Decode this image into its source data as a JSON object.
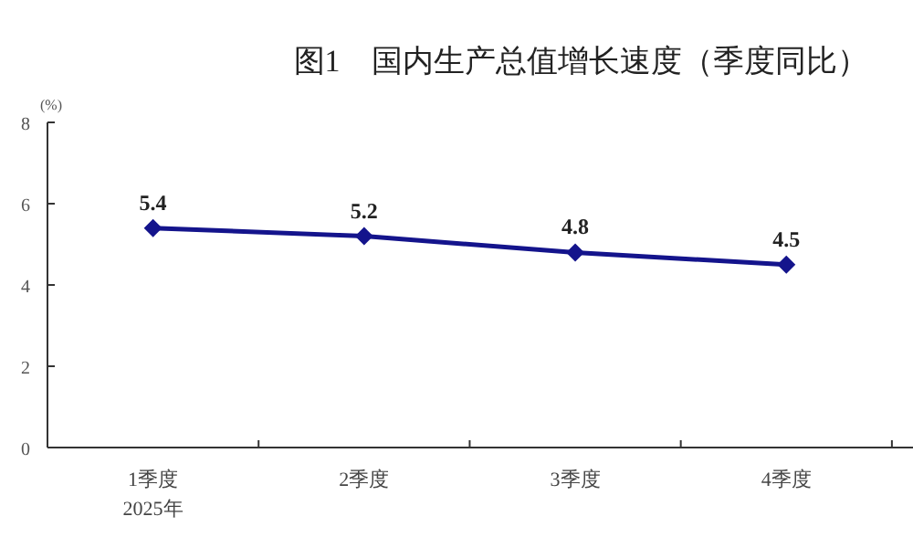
{
  "chart_data": {
    "type": "line",
    "title": "图1　国内生产总值增长速度（季度同比）",
    "ylabel": "(%)",
    "categories": [
      "1季度",
      "2季度",
      "3季度",
      "4季度"
    ],
    "series": [
      {
        "color": "#14148c",
        "values": [
          5.4,
          5.2,
          4.8,
          4.5
        ]
      }
    ],
    "ylim": [
      0,
      8
    ],
    "yticks": [
      0,
      2,
      4,
      6,
      8
    ],
    "data_labels": true,
    "marker": "diamond",
    "line_style": "solid",
    "annotations": [
      "2025年"
    ]
  }
}
